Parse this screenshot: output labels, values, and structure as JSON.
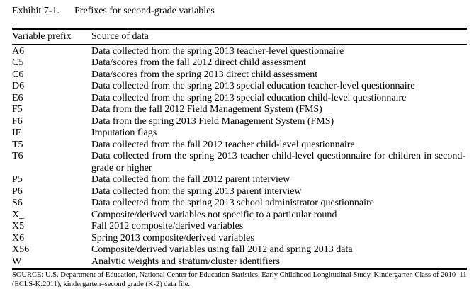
{
  "exhibit": {
    "number": "Exhibit 7-1.",
    "title": "Prefixes for second-grade variables"
  },
  "table": {
    "columns": [
      "Variable prefix",
      "Source of data"
    ],
    "rows": [
      {
        "prefix": "A6",
        "source": "Data collected from the spring 2013 teacher-level questionnaire"
      },
      {
        "prefix": "C5",
        "source": "Data/scores from the fall 2012 direct child assessment"
      },
      {
        "prefix": "C6",
        "source": "Data/scores from the spring 2013 direct child assessment"
      },
      {
        "prefix": "D6",
        "source": "Data collected from the spring 2013 special education teacher-level questionnaire"
      },
      {
        "prefix": "E6",
        "source": "Data collected from the spring 2013 special education child-level questionnaire"
      },
      {
        "prefix": "F5",
        "source": "Data from the fall 2012 Field Management System (FMS)"
      },
      {
        "prefix": "F6",
        "source": "Data from the spring 2013 Field Management System (FMS)"
      },
      {
        "prefix": "IF",
        "source": "Imputation flags"
      },
      {
        "prefix": "T5",
        "source": "Data collected from the fall 2012 teacher child-level questionnaire"
      },
      {
        "prefix": "T6",
        "source": "Data collected from the spring 2013 teacher child-level questionnaire for children in second-grade or higher"
      },
      {
        "prefix": "P5",
        "source": "Data collected from the fall 2012 parent interview"
      },
      {
        "prefix": "P6",
        "source": "Data collected from the spring 2013 parent interview"
      },
      {
        "prefix": "S6",
        "source": "Data collected from the spring 2013 school administrator questionnaire"
      },
      {
        "prefix": "X_",
        "source": "Composite/derived variables not specific to a particular round"
      },
      {
        "prefix": "X5",
        "source": "Fall 2012 composite/derived variables"
      },
      {
        "prefix": "X6",
        "source": "Spring 2013 composite/derived variables"
      },
      {
        "prefix": "X56",
        "source": "Composite/derived variables using fall 2012 and spring 2013 data"
      },
      {
        "prefix": "W",
        "source": "Analytic weights and stratum/cluster identifiers"
      }
    ]
  },
  "footer": {
    "source_note": "SOURCE: U.S. Department of Education, National Center for Education Statistics, Early Childhood Longitudinal Study, Kindergarten Class of 2010–11 (ECLS-K:2011), kindergarten–second grade (K-2) data file."
  }
}
